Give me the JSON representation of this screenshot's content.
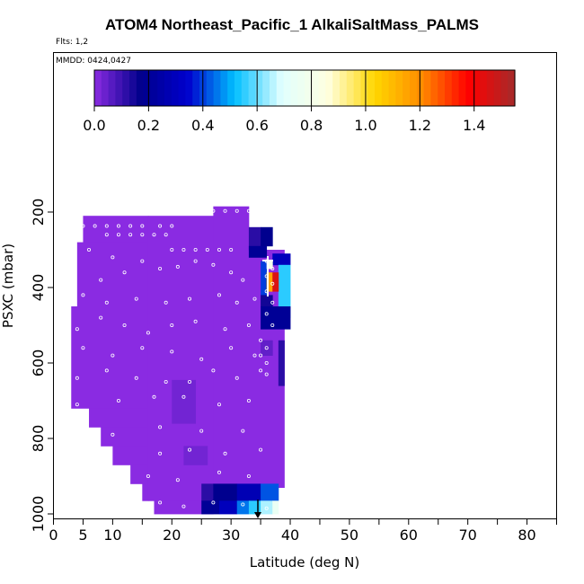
{
  "chart_data": {
    "type": "heatmap",
    "title": "ATOM4 Northeast_Pacific_1 AlkaliSaltMass_PALMS",
    "flights_label": "Flts: 1,2",
    "mmdd_label": "MMDD: 0424,0427",
    "xlabel": "Latitude (deg N)",
    "ylabel": "PSXC (mbar)",
    "x_ticks": [
      0,
      5,
      10,
      20,
      30,
      40,
      50,
      60,
      70,
      80
    ],
    "y_ticks": [
      200,
      400,
      600,
      800,
      1000
    ],
    "xlim": [
      0,
      85
    ],
    "ylim": [
      1000,
      0
    ],
    "colorbar": {
      "ticks": [
        0.0,
        0.2,
        0.4,
        0.6,
        0.8,
        1.0,
        1.2,
        1.4
      ],
      "tick_labels": [
        "0.0",
        "0.2",
        "0.4",
        "0.6",
        "0.8",
        "1.0",
        "1.2",
        "1.4"
      ],
      "range": [
        0,
        1.55
      ],
      "colors": [
        "#8a2be2",
        "#00008b",
        "#0000cd",
        "#00bfff",
        "#e0ffff",
        "#ffffe0",
        "#ffd700",
        "#ff8c00",
        "#ff0000",
        "#a52a2a"
      ]
    },
    "cells": [
      {
        "x0": 5,
        "x1": 16,
        "p0": 210,
        "p1": 280,
        "v": 0.0
      },
      {
        "x0": 4,
        "x1": 16,
        "p0": 280,
        "p1": 450,
        "v": 0.0
      },
      {
        "x0": 3,
        "x1": 16,
        "p0": 450,
        "p1": 720,
        "v": 0.0
      },
      {
        "x0": 6,
        "x1": 16,
        "p0": 720,
        "p1": 770,
        "v": 0.0
      },
      {
        "x0": 8,
        "x1": 16,
        "p0": 770,
        "p1": 820,
        "v": 0.0
      },
      {
        "x0": 10,
        "x1": 16,
        "p0": 820,
        "p1": 870,
        "v": 0.0
      },
      {
        "x0": 13,
        "x1": 16,
        "p0": 870,
        "p1": 920,
        "v": 0.0
      },
      {
        "x0": 15,
        "x1": 16,
        "p0": 920,
        "p1": 965,
        "v": 0.0
      },
      {
        "x0": 16,
        "x1": 27,
        "p0": 210,
        "p1": 965,
        "v": 0.0
      },
      {
        "x0": 17,
        "x1": 27,
        "p0": 965,
        "p1": 1000,
        "v": 0.0
      },
      {
        "x0": 27,
        "x1": 33,
        "p0": 185,
        "p1": 300,
        "v": 0.0
      },
      {
        "x0": 27,
        "x1": 34,
        "p0": 300,
        "p1": 965,
        "v": 0.0
      },
      {
        "x0": 34,
        "x1": 39,
        "p0": 300,
        "p1": 930,
        "v": 0.0
      },
      {
        "x0": 20,
        "x1": 24,
        "p0": 645,
        "p1": 760,
        "v": 0.03
      },
      {
        "x0": 22,
        "x1": 26,
        "p0": 820,
        "p1": 870,
        "v": 0.03
      },
      {
        "x0": 33,
        "x1": 35,
        "p0": 240,
        "p1": 300,
        "v": 0.12
      },
      {
        "x0": 35,
        "x1": 37,
        "p0": 240,
        "p1": 290,
        "v": 0.18
      },
      {
        "x0": 33,
        "x1": 36,
        "p0": 290,
        "p1": 320,
        "v": 0.2
      },
      {
        "x0": 37,
        "x1": 40,
        "p0": 310,
        "p1": 340,
        "v": 0.3
      },
      {
        "x0": 38,
        "x1": 40,
        "p0": 340,
        "p1": 480,
        "v": 0.55
      },
      {
        "x0": 35,
        "x1": 36,
        "p0": 330,
        "p1": 420,
        "v": 0.4
      },
      {
        "x0": 36,
        "x1": 37,
        "p0": 330,
        "p1": 350,
        "v": 0.8
      },
      {
        "x0": 36,
        "x1": 37,
        "p0": 360,
        "p1": 410,
        "v": 1.15
      },
      {
        "x0": 37,
        "x1": 38,
        "p0": 360,
        "p1": 410,
        "v": 1.45
      },
      {
        "x0": 35,
        "x1": 37,
        "p0": 420,
        "p1": 450,
        "v": 0.15
      },
      {
        "x0": 35,
        "x1": 40,
        "p0": 450,
        "p1": 510,
        "v": 0.2
      },
      {
        "x0": 35,
        "x1": 37,
        "p0": 540,
        "p1": 580,
        "v": 0.05
      },
      {
        "x0": 38,
        "x1": 39,
        "p0": 540,
        "p1": 660,
        "v": 0.12
      },
      {
        "x0": 25,
        "x1": 27,
        "p0": 920,
        "p1": 965,
        "v": 0.12
      },
      {
        "x0": 27,
        "x1": 31,
        "p0": 920,
        "p1": 965,
        "v": 0.18
      },
      {
        "x0": 31,
        "x1": 35,
        "p0": 920,
        "p1": 965,
        "v": 0.28
      },
      {
        "x0": 35,
        "x1": 38,
        "p0": 920,
        "p1": 965,
        "v": 0.42
      },
      {
        "x0": 25,
        "x1": 28,
        "p0": 965,
        "p1": 1000,
        "v": 0.2
      },
      {
        "x0": 28,
        "x1": 31,
        "p0": 965,
        "p1": 1000,
        "v": 0.3
      },
      {
        "x0": 31,
        "x1": 33,
        "p0": 965,
        "p1": 1000,
        "v": 0.45
      },
      {
        "x0": 33,
        "x1": 35,
        "p0": 965,
        "p1": 1000,
        "v": 0.55
      },
      {
        "x0": 35,
        "x1": 37,
        "p0": 965,
        "p1": 1000,
        "v": 0.65
      },
      {
        "x0": 37,
        "x1": 38,
        "p0": 965,
        "p1": 1000,
        "v": 0.75
      }
    ],
    "obs_points": [
      [
        5,
        237
      ],
      [
        7,
        237
      ],
      [
        9,
        237
      ],
      [
        11,
        237
      ],
      [
        13,
        237
      ],
      [
        15,
        237
      ],
      [
        18,
        237
      ],
      [
        20,
        237
      ],
      [
        9,
        260
      ],
      [
        11,
        260
      ],
      [
        13,
        260
      ],
      [
        15,
        260
      ],
      [
        17,
        260
      ],
      [
        19,
        260
      ],
      [
        20,
        300
      ],
      [
        22,
        300
      ],
      [
        24,
        300
      ],
      [
        26,
        300
      ],
      [
        28,
        300
      ],
      [
        30,
        300
      ],
      [
        27,
        197
      ],
      [
        29,
        197
      ],
      [
        31,
        197
      ],
      [
        33,
        197
      ],
      [
        6,
        300
      ],
      [
        10,
        320
      ],
      [
        12,
        360
      ],
      [
        8,
        380
      ],
      [
        15,
        330
      ],
      [
        18,
        350
      ],
      [
        21,
        345
      ],
      [
        24,
        330
      ],
      [
        27,
        340
      ],
      [
        30,
        360
      ],
      [
        32,
        380
      ],
      [
        5,
        420
      ],
      [
        9,
        440
      ],
      [
        14,
        430
      ],
      [
        19,
        440
      ],
      [
        23,
        430
      ],
      [
        28,
        420
      ],
      [
        31,
        440
      ],
      [
        34,
        430
      ],
      [
        4,
        510
      ],
      [
        8,
        480
      ],
      [
        12,
        500
      ],
      [
        16,
        520
      ],
      [
        20,
        500
      ],
      [
        24,
        490
      ],
      [
        29,
        510
      ],
      [
        33,
        500
      ],
      [
        5,
        560
      ],
      [
        10,
        580
      ],
      [
        15,
        560
      ],
      [
        20,
        570
      ],
      [
        25,
        590
      ],
      [
        30,
        560
      ],
      [
        34,
        580
      ],
      [
        4,
        640
      ],
      [
        9,
        620
      ],
      [
        14,
        640
      ],
      [
        19,
        650
      ],
      [
        23,
        650
      ],
      [
        27,
        620
      ],
      [
        31,
        640
      ],
      [
        36,
        630
      ],
      [
        4,
        710
      ],
      [
        11,
        700
      ],
      [
        17,
        690
      ],
      [
        22,
        690
      ],
      [
        28,
        710
      ],
      [
        33,
        700
      ],
      [
        10,
        790
      ],
      [
        18,
        770
      ],
      [
        25,
        780
      ],
      [
        32,
        780
      ],
      [
        18,
        840
      ],
      [
        23,
        830
      ],
      [
        29,
        840
      ],
      [
        35,
        830
      ],
      [
        16,
        900
      ],
      [
        21,
        910
      ],
      [
        28,
        890
      ],
      [
        33,
        900
      ],
      [
        18,
        970
      ],
      [
        22,
        980
      ],
      [
        27,
        970
      ],
      [
        32,
        975
      ],
      [
        36,
        985
      ],
      [
        36,
        330
      ],
      [
        37,
        350
      ],
      [
        36,
        370
      ],
      [
        37,
        390
      ],
      [
        36,
        410
      ],
      [
        37,
        440
      ],
      [
        36,
        470
      ],
      [
        37,
        500
      ],
      [
        35,
        540
      ],
      [
        36,
        560
      ],
      [
        35,
        580
      ],
      [
        36,
        600
      ],
      [
        35,
        620
      ]
    ]
  }
}
